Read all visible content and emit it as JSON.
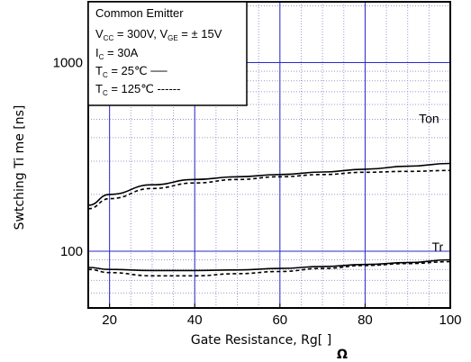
{
  "chart_data": {
    "type": "line",
    "xlabel": "Gate Resistance, Rg[ ]",
    "xlabel_unit": "Ω",
    "ylabel": "Swtching Ti me [ns]",
    "x_scale": "linear",
    "y_scale": "log",
    "xlim": [
      15,
      100
    ],
    "ylim": [
      50,
      2100
    ],
    "x_ticks": [
      20,
      40,
      60,
      80,
      100
    ],
    "x_tick_labels": [
      "20",
      "40",
      "60",
      "80",
      "100"
    ],
    "y_ticks": [
      100,
      1000
    ],
    "y_tick_labels": [
      "100",
      "1000"
    ],
    "grid": true,
    "legend": {
      "position": "top-left",
      "lines": [
        {
          "text": "Common Emitter",
          "type": "plain"
        },
        {
          "type": "vcc",
          "a": "V",
          "a_sub": "CC",
          "b": " = 300V, V",
          "b_sub": "GE",
          "c": " = ± 15V"
        },
        {
          "type": "ic",
          "a": "I",
          "a_sub": "C",
          "b": " = 30A"
        },
        {
          "type": "tc",
          "a": "T",
          "a_sub": "C",
          "b": " =   25℃ ──"
        },
        {
          "type": "tc",
          "a": "T",
          "a_sub": "C",
          "b": " = 125℃ ------"
        }
      ]
    },
    "series": [
      {
        "name": "Ton",
        "condition": "Tc = 25℃",
        "style": "solid",
        "x": [
          15,
          20,
          30,
          40,
          50,
          60,
          70,
          80,
          90,
          100
        ],
        "y": [
          175,
          200,
          225,
          240,
          248,
          255,
          263,
          272,
          282,
          292
        ]
      },
      {
        "name": "Ton",
        "condition": "Tc = 125℃",
        "style": "dashed",
        "x": [
          15,
          20,
          30,
          40,
          50,
          60,
          70,
          80,
          90,
          100
        ],
        "y": [
          168,
          190,
          215,
          230,
          240,
          248,
          255,
          262,
          265,
          268
        ]
      },
      {
        "name": "Tr",
        "condition": "Tc = 25℃",
        "style": "solid",
        "x": [
          15,
          20,
          30,
          40,
          50,
          60,
          70,
          80,
          90,
          100
        ],
        "y": [
          82,
          80,
          79,
          79,
          79.5,
          81,
          83,
          85,
          87,
          90
        ]
      },
      {
        "name": "Tr",
        "condition": "Tc = 125℃",
        "style": "dashed",
        "x": [
          15,
          20,
          30,
          40,
          50,
          60,
          70,
          80,
          90,
          100
        ],
        "y": [
          80,
          77,
          74,
          74,
          76,
          78,
          81,
          84,
          86,
          88
        ]
      }
    ],
    "curve_labels": [
      {
        "text": "Ton",
        "x": 95,
        "y": 480
      },
      {
        "text": "Tr",
        "x": 97,
        "y": 100
      }
    ]
  }
}
